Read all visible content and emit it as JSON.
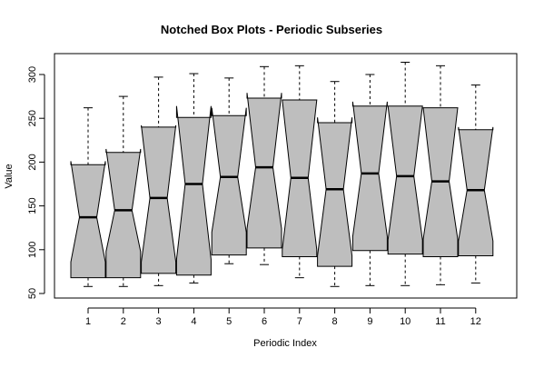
{
  "chart_data": {
    "type": "box",
    "title": "Notched Box Plots - Periodic Subseries",
    "xlabel": "Periodic Index",
    "ylabel": "Value",
    "ylim": [
      50,
      320
    ],
    "yticks": [
      50,
      100,
      150,
      200,
      250,
      300
    ],
    "categories": [
      "1",
      "2",
      "3",
      "4",
      "5",
      "6",
      "7",
      "8",
      "9",
      "10",
      "11",
      "12"
    ],
    "boxes": [
      {
        "category": "1",
        "whisker_low": 58,
        "q1": 68,
        "median": 137,
        "q3": 197,
        "whisker_high": 262,
        "notch_low": 86,
        "notch_high": 201
      },
      {
        "category": "2",
        "whisker_low": 58,
        "q1": 68,
        "median": 145,
        "q3": 211,
        "whisker_high": 275,
        "notch_low": 98,
        "notch_high": 215
      },
      {
        "category": "3",
        "whisker_low": 59,
        "q1": 73,
        "median": 159,
        "q3": 240,
        "whisker_high": 297,
        "notch_low": 86,
        "notch_high": 242
      },
      {
        "category": "4",
        "whisker_low": 62,
        "q1": 71,
        "median": 175,
        "q3": 251,
        "whisker_high": 301,
        "notch_low": 89,
        "notch_high": 264
      },
      {
        "category": "5",
        "whisker_low": 84,
        "q1": 94,
        "median": 183,
        "q3": 253,
        "whisker_high": 296,
        "notch_low": 120,
        "notch_high": 262
      },
      {
        "category": "6",
        "whisker_low": 83,
        "q1": 102,
        "median": 194,
        "q3": 273,
        "whisker_high": 309,
        "notch_low": 124,
        "notch_high": 279
      },
      {
        "category": "7",
        "whisker_low": 68,
        "q1": 92,
        "median": 182,
        "q3": 271,
        "whisker_high": 310,
        "notch_low": 100,
        "notch_high": 271
      },
      {
        "category": "8",
        "whisker_low": 58,
        "q1": 81,
        "median": 169,
        "q3": 245,
        "whisker_high": 292,
        "notch_low": 93,
        "notch_high": 251
      },
      {
        "category": "9",
        "whisker_low": 59,
        "q1": 99,
        "median": 187,
        "q3": 264,
        "whisker_high": 300,
        "notch_low": 115,
        "notch_high": 269
      },
      {
        "category": "10",
        "whisker_low": 59,
        "q1": 95,
        "median": 184,
        "q3": 264,
        "whisker_high": 314,
        "notch_low": 111,
        "notch_high": 264
      },
      {
        "category": "11",
        "whisker_low": 60,
        "q1": 92,
        "median": 178,
        "q3": 262,
        "whisker_high": 310,
        "notch_low": 112,
        "notch_high": 262
      },
      {
        "category": "12",
        "whisker_low": 62,
        "q1": 93,
        "median": 168,
        "q3": 237,
        "whisker_high": 288,
        "notch_low": 110,
        "notch_high": 240
      }
    ],
    "box_fill": "#bebebe",
    "line_color": "#000000",
    "grid": false,
    "legend": "none"
  }
}
